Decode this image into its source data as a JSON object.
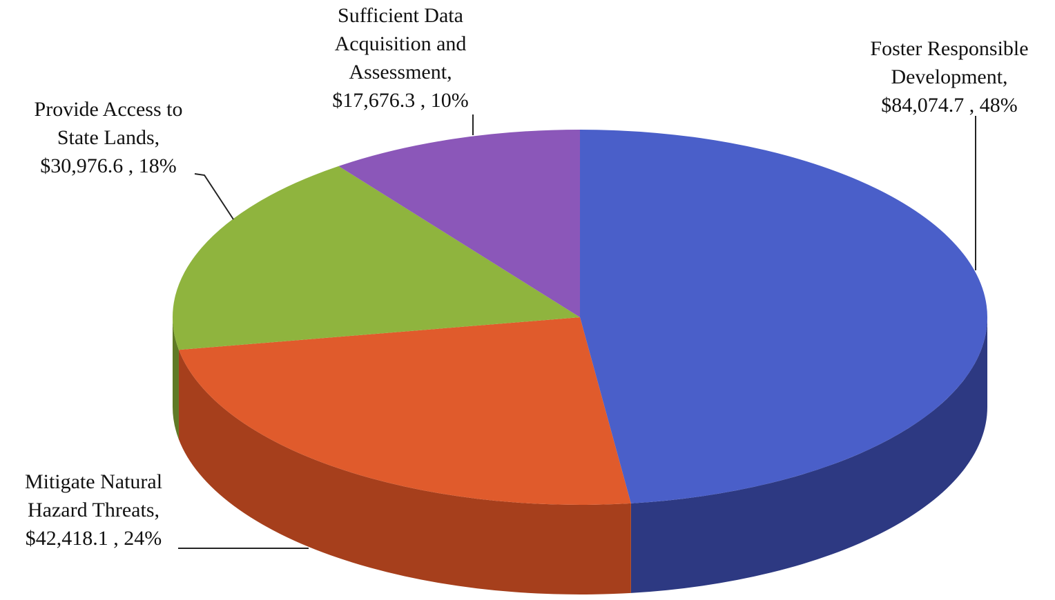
{
  "chart_data": {
    "type": "pie",
    "categories": [
      "Foster Responsible Development,",
      "Mitigate Natural Hazard Threats,",
      "Provide Access to State Lands,",
      "Sufficient Data Acquisition and Assessment,"
    ],
    "values": [
      84074.7,
      42418.1,
      30976.6,
      17676.3
    ],
    "value_labels": [
      "$84,074.7 ,",
      "$42,418.1 ,",
      "$30,976.6 ,",
      "$17,676.3 ,"
    ],
    "percentages": [
      48,
      24,
      18,
      10
    ],
    "percentage_labels": [
      "48%",
      "24%",
      "18%",
      "10%"
    ],
    "colors": [
      "#4a5fc9",
      "#e05b2c",
      "#8fb43e",
      "#8b57b9"
    ],
    "side_colors": [
      "#2d3982",
      "#a63f1c",
      "#5f7a26",
      "#5a3680"
    ]
  }
}
